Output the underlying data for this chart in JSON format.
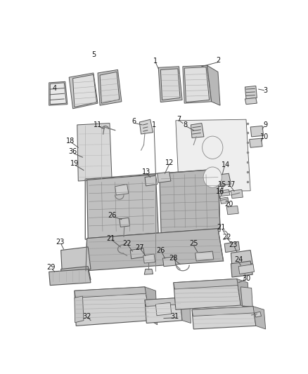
{
  "bg_color": "#ffffff",
  "fig_width": 4.38,
  "fig_height": 5.33,
  "dpi": 100,
  "ec": "#555555",
  "fc_light": "#e8e8e8",
  "fc_mid": "#d0d0d0",
  "fc_dark": "#b0b0b0",
  "fc_darker": "#888888",
  "lw_main": 0.7,
  "lw_thin": 0.4,
  "label_fs": 7.0
}
